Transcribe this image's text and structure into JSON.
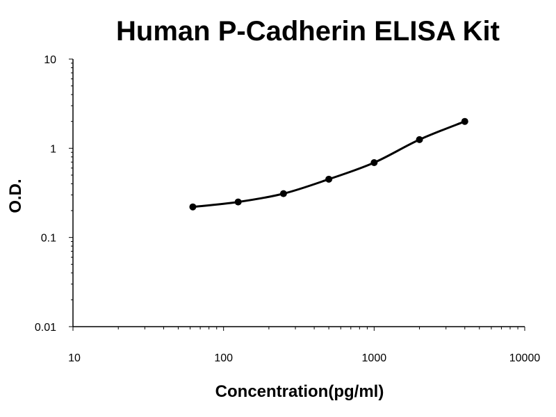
{
  "chart_data": {
    "type": "scatter",
    "title": "Human P-Cadherin ELISA Kit",
    "xlabel": "Concentration(pg/ml)",
    "ylabel": "O.D.",
    "x_scale": "log",
    "y_scale": "log",
    "xlim": [
      10,
      10000
    ],
    "ylim": [
      0.01,
      10
    ],
    "x_tick_labels": [
      "10",
      "100",
      "1000",
      "10000"
    ],
    "y_tick_labels": [
      "0.01",
      "0.1",
      "1",
      "10"
    ],
    "grid": false,
    "series": [
      {
        "x": [
          62.5,
          125,
          250,
          500,
          1000,
          2000,
          4000
        ],
        "y": [
          0.22,
          0.25,
          0.31,
          0.45,
          0.69,
          1.25,
          2.0
        ],
        "fit_line": true,
        "color": "#000000"
      }
    ]
  }
}
